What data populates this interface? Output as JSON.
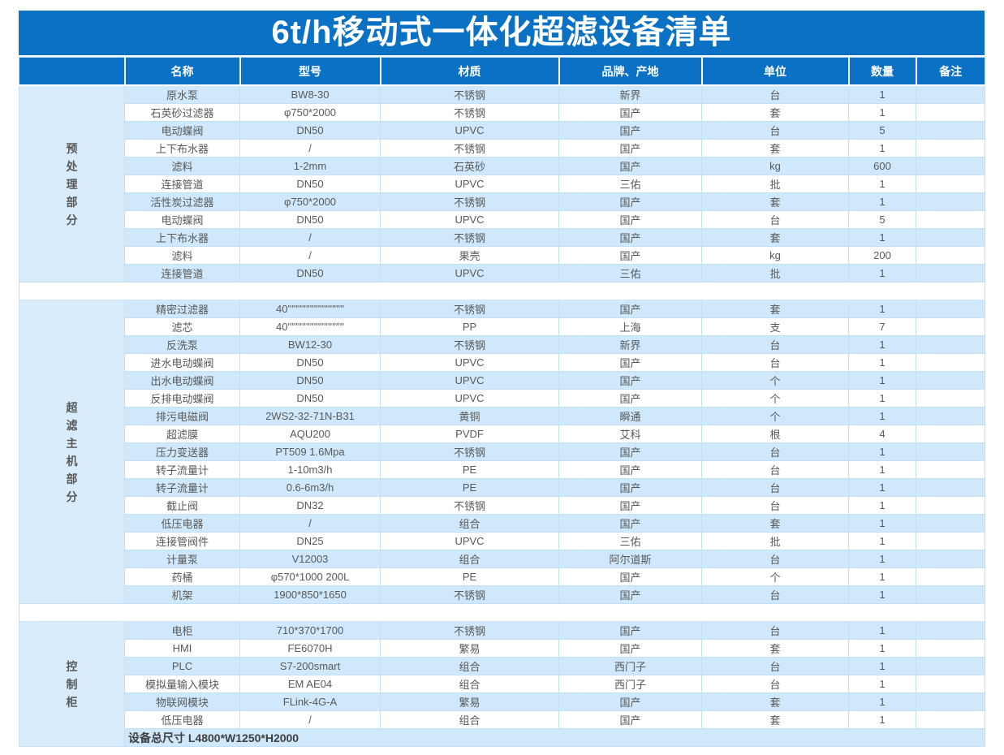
{
  "title": "6t/h移动式一体化超滤设备清单",
  "columns": [
    "名称",
    "型号",
    "材质",
    "品牌、产地",
    "单位",
    "数量",
    "备注"
  ],
  "sections": [
    {
      "group": "预处理部分",
      "rows": [
        [
          "原水泵",
          "BW8-30",
          "不锈钢",
          "新界",
          "台",
          "1",
          ""
        ],
        [
          "石英砂过滤器",
          "φ750*2000",
          "不锈钢",
          "国产",
          "套",
          "1",
          ""
        ],
        [
          "电动蝶阀",
          "DN50",
          "UPVC",
          "国产",
          "台",
          "5",
          ""
        ],
        [
          "上下布水器",
          "/",
          "不锈钢",
          "国产",
          "套",
          "1",
          ""
        ],
        [
          "滤料",
          "1-2mm",
          "石英砂",
          "国产",
          "kg",
          "600",
          ""
        ],
        [
          "连接管道",
          "DN50",
          "UPVC",
          "三佑",
          "批",
          "1",
          ""
        ],
        [
          "活性炭过滤器",
          "φ750*2000",
          "不锈钢",
          "国产",
          "套",
          "1",
          ""
        ],
        [
          "电动蝶阀",
          "DN50",
          "UPVC",
          "国产",
          "台",
          "5",
          ""
        ],
        [
          "上下布水器",
          "/",
          "不锈钢",
          "国产",
          "套",
          "1",
          ""
        ],
        [
          "滤料",
          "/",
          "果壳",
          "国产",
          "kg",
          "200",
          ""
        ],
        [
          "连接管道",
          "DN50",
          "UPVC",
          "三佑",
          "批",
          "1",
          ""
        ]
      ]
    },
    {
      "group": "超滤主机部分",
      "rows": [
        [
          "精密过滤器",
          "40''''''''''''''''''''''''''''",
          "不锈钢",
          "国产",
          "套",
          "1",
          ""
        ],
        [
          "滤芯",
          "40''''''''''''''''''''''''''''",
          "PP",
          "上海",
          "支",
          "7",
          ""
        ],
        [
          "反洗泵",
          "BW12-30",
          "不锈钢",
          "新界",
          "台",
          "1",
          ""
        ],
        [
          "进水电动蝶阀",
          "DN50",
          "UPVC",
          "国产",
          "台",
          "1",
          ""
        ],
        [
          "出水电动蝶阀",
          "DN50",
          "UPVC",
          "国产",
          "个",
          "1",
          ""
        ],
        [
          "反排电动蝶阀",
          "DN50",
          "UPVC",
          "国产",
          "个",
          "1",
          ""
        ],
        [
          "排污电磁阀",
          "2WS2-32-71N-B31",
          "黄铜",
          "瞬通",
          "个",
          "1",
          ""
        ],
        [
          "超滤膜",
          "AQU200",
          "PVDF",
          "艾科",
          "根",
          "4",
          ""
        ],
        [
          "压力变送器",
          "PT509 1.6Mpa",
          "不锈钢",
          "国产",
          "台",
          "1",
          ""
        ],
        [
          "转子流量计",
          "1-10m3/h",
          "PE",
          "国产",
          "台",
          "1",
          ""
        ],
        [
          "转子流量计",
          "0.6-6m3/h",
          "PE",
          "国产",
          "台",
          "1",
          ""
        ],
        [
          "截止阀",
          "DN32",
          "不锈钢",
          "国产",
          "台",
          "1",
          ""
        ],
        [
          "低压电器",
          "/",
          "组合",
          "国产",
          "套",
          "1",
          ""
        ],
        [
          "连接管阀件",
          "DN25",
          "UPVC",
          "三佑",
          "批",
          "1",
          ""
        ],
        [
          "计量泵",
          "V12003",
          "组合",
          "阿尔道斯",
          "台",
          "1",
          ""
        ],
        [
          "药桶",
          "φ570*1000 200L",
          "PE",
          "国产",
          "个",
          "1",
          ""
        ],
        [
          "机架",
          "1900*850*1650",
          "不锈钢",
          "国产",
          "台",
          "1",
          ""
        ]
      ]
    },
    {
      "group": "控制柜",
      "rows": [
        [
          "电柜",
          "710*370*1700",
          "不锈钢",
          "国产",
          "台",
          "1",
          ""
        ],
        [
          "HMI",
          "FE6070H",
          "繁易",
          "国产",
          "套",
          "1",
          ""
        ],
        [
          "PLC",
          "S7-200smart",
          "组合",
          "西门子",
          "台",
          "1",
          ""
        ],
        [
          "模拟量输入模块",
          "EM AE04",
          "组合",
          "西门子",
          "台",
          "1",
          ""
        ],
        [
          "物联网模块",
          "FLink-4G-A",
          "繁易",
          "国产",
          "套",
          "1",
          ""
        ],
        [
          "低压电器",
          "/",
          "组合",
          "国产",
          "套",
          "1",
          ""
        ]
      ],
      "footer": "设备总尺寸 L4800*W1250*H2000"
    }
  ],
  "colors": {
    "accent": "#0a71c4",
    "rowblue": "#cfe8fb",
    "groupblue": "#d8ecfc",
    "body_text": "#595959"
  }
}
